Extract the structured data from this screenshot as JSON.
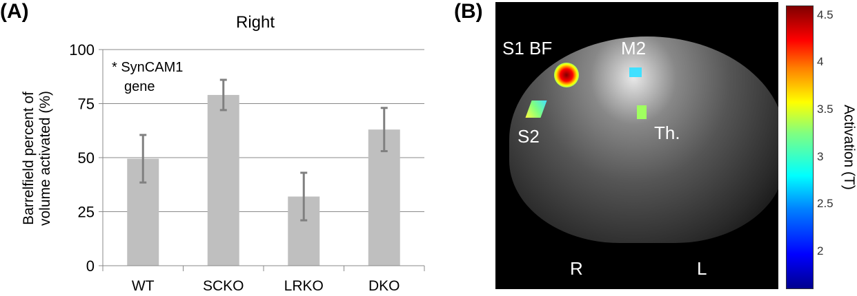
{
  "panel_a_label": "(A)",
  "panel_b_label": "(B)",
  "chart_data": [
    {
      "type": "bar",
      "title": "Right",
      "ylabel": "Barrelfield percent of volume activated (%)",
      "xlabel": "",
      "categories": [
        "WT",
        "SCKO",
        "LRKO",
        "DKO"
      ],
      "values": [
        49.5,
        79,
        32,
        63
      ],
      "error_low": [
        38.5,
        72,
        21,
        53
      ],
      "error_high": [
        60.5,
        86,
        43,
        73
      ],
      "ylim": [
        0,
        100
      ],
      "yticks": [
        0,
        25,
        50,
        75,
        100
      ],
      "grid": true,
      "annotation": [
        "* SynCAM1",
        "gene"
      ],
      "bar_color": "#bfbfbf",
      "error_color": "#808080"
    },
    {
      "type": "heatmap",
      "colorbar_label": "Activation (T)",
      "colorbar_ticks": [
        "4.5",
        "4",
        "3.5",
        "3",
        "2.5",
        "2"
      ],
      "colorbar_range": [
        1.6,
        4.6
      ],
      "region_labels": [
        "S1 BF",
        "M2",
        "S2",
        "Th.",
        "R",
        "L"
      ]
    }
  ]
}
